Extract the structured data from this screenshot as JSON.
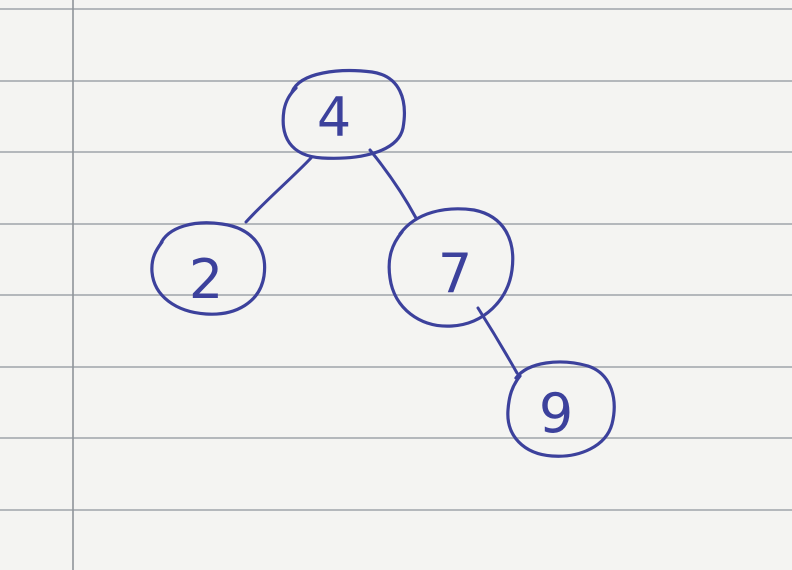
{
  "tree": {
    "root": {
      "id": "n4",
      "value": "4"
    },
    "nodes": [
      {
        "id": "n4",
        "value": "4"
      },
      {
        "id": "n2",
        "value": "2"
      },
      {
        "id": "n7",
        "value": "7"
      },
      {
        "id": "n9",
        "value": "9"
      }
    ],
    "edges": [
      {
        "from": "n4",
        "to": "n2"
      },
      {
        "from": "n4",
        "to": "n7"
      },
      {
        "from": "n7",
        "to": "n9"
      }
    ]
  },
  "colors": {
    "ink": "#3c419c",
    "paper": "#f4f4f2",
    "rule": "#9fa4aa"
  }
}
